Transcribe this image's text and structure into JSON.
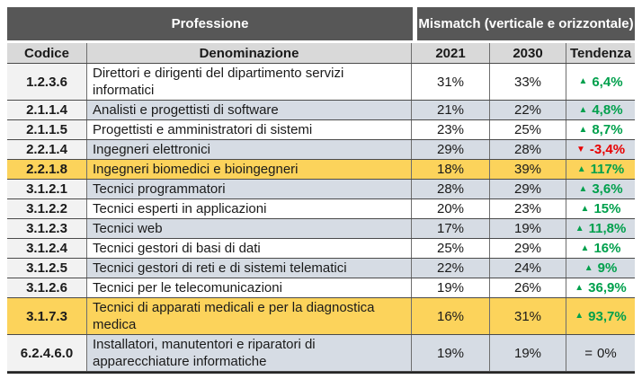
{
  "header": {
    "group_profession": "Professione",
    "group_mismatch": "Mismatch (verticale e orizzontale)",
    "columns": [
      "Codice",
      "Denominazione",
      "2021",
      "2030",
      "Tendenza"
    ]
  },
  "icons": {
    "up": "▲",
    "down": "▼",
    "equal": "="
  },
  "colors": {
    "header_bg": "#575757",
    "subheader_bg": "#D9D9D9",
    "code_column_bg": "#F2F2F2",
    "row_alt_bg": "#D6DCE4",
    "row_plain_bg": "#FFFFFF",
    "row_highlight_bg": "#FCD35B",
    "trend_up": "#00A04C",
    "trend_down": "#E80000"
  },
  "table": {
    "rows": [
      {
        "code": "1.2.3.6",
        "name": "Direttori e dirigenti del dipartimento servizi informatici",
        "y2021": "31%",
        "y2030": "33%",
        "trend": "6,4%",
        "direction": "up",
        "shade": "plain"
      },
      {
        "code": "2.1.1.4",
        "name": "Analisti e progettisti di software",
        "y2021": "21%",
        "y2030": "22%",
        "trend": "4,8%",
        "direction": "up",
        "shade": "alt"
      },
      {
        "code": "2.1.1.5",
        "name": "Progettisti e amministratori di sistemi",
        "y2021": "23%",
        "y2030": "25%",
        "trend": "8,7%",
        "direction": "up",
        "shade": "plain"
      },
      {
        "code": "2.2.1.4",
        "name": "Ingegneri elettronici",
        "y2021": "29%",
        "y2030": "28%",
        "trend": "-3,4%",
        "direction": "down",
        "shade": "alt"
      },
      {
        "code": "2.2.1.8",
        "name": "Ingegneri biomedici e bioingegneri",
        "y2021": "18%",
        "y2030": "39%",
        "trend": "117%",
        "direction": "up",
        "shade": "highlight"
      },
      {
        "code": "3.1.2.1",
        "name": "Tecnici programmatori",
        "y2021": "28%",
        "y2030": "29%",
        "trend": "3,6%",
        "direction": "up",
        "shade": "alt"
      },
      {
        "code": "3.1.2.2",
        "name": "Tecnici esperti in applicazioni",
        "y2021": "20%",
        "y2030": "23%",
        "trend": "15%",
        "direction": "up",
        "shade": "plain"
      },
      {
        "code": "3.1.2.3",
        "name": "Tecnici web",
        "y2021": "17%",
        "y2030": "19%",
        "trend": "11,8%",
        "direction": "up",
        "shade": "alt"
      },
      {
        "code": "3.1.2.4",
        "name": "Tecnici gestori di basi di dati",
        "y2021": "25%",
        "y2030": "29%",
        "trend": "16%",
        "direction": "up",
        "shade": "plain"
      },
      {
        "code": "3.1.2.5",
        "name": "Tecnici gestori di reti e di sistemi telematici",
        "y2021": "22%",
        "y2030": "24%",
        "trend": "9%",
        "direction": "up",
        "shade": "alt"
      },
      {
        "code": "3.1.2.6",
        "name": "Tecnici per le telecomunicazioni",
        "y2021": "19%",
        "y2030": "26%",
        "trend": "36,9%",
        "direction": "up",
        "shade": "plain"
      },
      {
        "code": "3.1.7.3",
        "name": "Tecnici di apparati medicali e per la diagnostica medica",
        "y2021": "16%",
        "y2030": "31%",
        "trend": "93,7%",
        "direction": "up",
        "shade": "highlight"
      },
      {
        "code": "6.2.4.6.0",
        "name": "Installatori, manutentori e riparatori di apparecchiature informatiche",
        "y2021": "19%",
        "y2030": "19%",
        "trend": "0%",
        "direction": "equal",
        "shade": "alt"
      }
    ]
  }
}
